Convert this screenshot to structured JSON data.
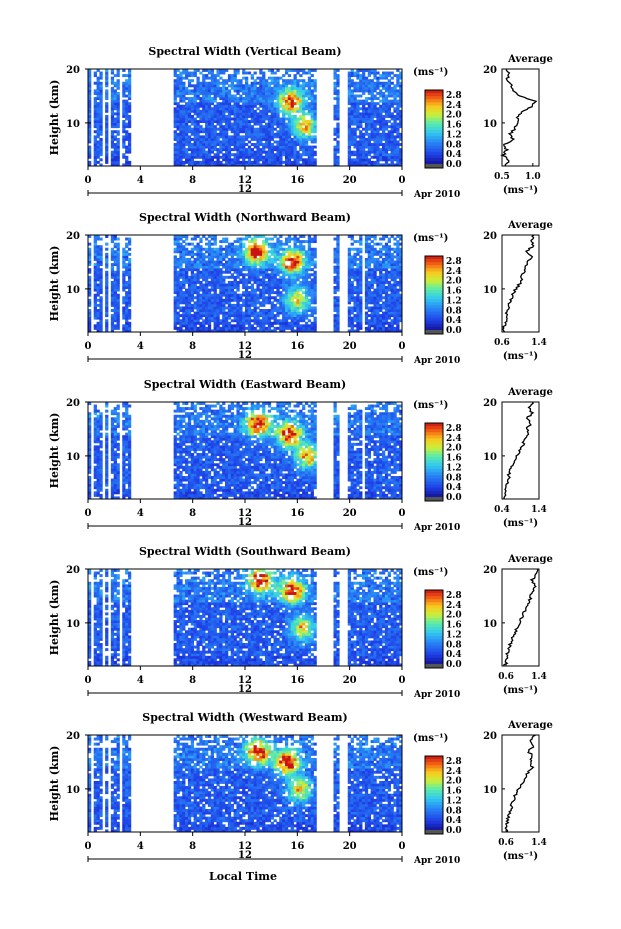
{
  "figure": {
    "xlabel": "Local Time",
    "date_label": "Apr 2010",
    "height_label": "Height (km)",
    "units_label": "(ms⁻¹)",
    "avg_title": "Average",
    "avg_xlabel": "(ms⁻¹)",
    "colorbar_ticks": [
      "2.8",
      "2.4",
      "2.0",
      "1.6",
      "1.2",
      "0.8",
      "0.4",
      "0.0"
    ],
    "colorbar_values": [
      2.8,
      2.4,
      2.0,
      1.6,
      1.2,
      0.8,
      0.4,
      0.0
    ],
    "x_ticks": [
      "0",
      "4",
      "8",
      "12",
      "16",
      "20",
      "0"
    ],
    "x_tick_values": [
      0,
      4,
      8,
      12,
      16,
      20,
      24
    ],
    "day_label": "12",
    "y_ticks": [
      "20",
      "10"
    ],
    "y_tick_values": [
      20,
      10
    ]
  },
  "chart_data": [
    {
      "type": "heatmap",
      "title": "Spectral Width (Vertical Beam)",
      "xlim": [
        0,
        24
      ],
      "ylim": [
        2,
        20
      ],
      "zlim": [
        0.0,
        3.0
      ],
      "data_gaps_hours": [
        [
          0.2,
          0.4
        ],
        [
          1.0,
          1.4
        ],
        [
          1.6,
          1.8
        ],
        [
          2.3,
          2.6
        ],
        [
          3.3,
          6.6
        ],
        [
          17.5,
          18.8
        ],
        [
          19.2,
          19.8
        ]
      ],
      "hotspots": [
        {
          "x": 15.5,
          "y": 14,
          "value": 2.4
        },
        {
          "x": 16.6,
          "y": 9.5,
          "value": 2.0
        }
      ],
      "average": {
        "xlim": [
          0.5,
          1.1
        ],
        "ticks": [
          "0.5",
          "1.0"
        ],
        "tick_values": [
          0.5,
          1.0
        ],
        "height": [
          2,
          3,
          4,
          5,
          6,
          7,
          8,
          9,
          10,
          11,
          12,
          13,
          14,
          15,
          16,
          17,
          18,
          19,
          20
        ],
        "value": [
          0.55,
          0.6,
          0.52,
          0.57,
          0.55,
          0.68,
          0.63,
          0.72,
          0.74,
          0.76,
          0.82,
          0.97,
          1.05,
          0.78,
          0.68,
          0.66,
          0.58,
          0.62,
          0.55
        ]
      }
    },
    {
      "type": "heatmap",
      "title": "Spectral Width (Northward Beam)",
      "xlim": [
        0,
        24
      ],
      "ylim": [
        2,
        20
      ],
      "zlim": [
        0.0,
        3.0
      ],
      "data_gaps_hours": [
        [
          0.2,
          0.4
        ],
        [
          1.0,
          1.4
        ],
        [
          1.6,
          1.8
        ],
        [
          2.3,
          2.6
        ],
        [
          3.3,
          6.6
        ],
        [
          17.5,
          18.8
        ],
        [
          19.2,
          19.8
        ],
        [
          21.0,
          21.2
        ]
      ],
      "hotspots": [
        {
          "x": 12.9,
          "y": 17,
          "value": 2.6
        },
        {
          "x": 15.6,
          "y": 15,
          "value": 2.6
        },
        {
          "x": 16.0,
          "y": 8,
          "value": 1.8
        }
      ],
      "average": {
        "xlim": [
          0.6,
          1.4
        ],
        "ticks": [
          "0.6",
          "1.4"
        ],
        "tick_values": [
          0.6,
          1.4
        ],
        "height": [
          2,
          3,
          4,
          5,
          6,
          7,
          8,
          9,
          10,
          11,
          12,
          13,
          14,
          15,
          16,
          17,
          18,
          19,
          20
        ],
        "value": [
          0.66,
          0.64,
          0.7,
          0.68,
          0.72,
          0.74,
          0.78,
          0.84,
          0.9,
          0.98,
          1.02,
          1.06,
          1.1,
          1.16,
          1.24,
          1.14,
          1.28,
          1.22,
          1.3
        ]
      }
    },
    {
      "type": "heatmap",
      "title": "Spectral Width (Eastward Beam)",
      "xlim": [
        0,
        24
      ],
      "ylim": [
        2,
        20
      ],
      "zlim": [
        0.0,
        3.0
      ],
      "data_gaps_hours": [
        [
          0.2,
          0.4
        ],
        [
          1.0,
          1.4
        ],
        [
          1.6,
          1.8
        ],
        [
          2.3,
          2.6
        ],
        [
          3.3,
          6.6
        ],
        [
          17.5,
          18.8
        ],
        [
          19.2,
          19.8
        ],
        [
          21.0,
          21.2
        ]
      ],
      "hotspots": [
        {
          "x": 13.0,
          "y": 16,
          "value": 2.6
        },
        {
          "x": 15.4,
          "y": 14,
          "value": 2.6
        },
        {
          "x": 16.8,
          "y": 10,
          "value": 2.0
        }
      ],
      "average": {
        "xlim": [
          0.4,
          1.4
        ],
        "ticks": [
          "0.4",
          "1.4"
        ],
        "tick_values": [
          0.4,
          1.4
        ],
        "height": [
          2,
          3,
          4,
          5,
          6,
          7,
          8,
          9,
          10,
          11,
          12,
          13,
          14,
          15,
          16,
          17,
          18,
          19,
          20
        ],
        "value": [
          0.48,
          0.5,
          0.52,
          0.56,
          0.58,
          0.6,
          0.64,
          0.72,
          0.8,
          0.88,
          0.96,
          1.02,
          1.12,
          1.06,
          1.18,
          1.1,
          1.2,
          1.14,
          1.22
        ]
      }
    },
    {
      "type": "heatmap",
      "title": "Spectral Width (Southward Beam)",
      "xlim": [
        0,
        24
      ],
      "ylim": [
        2,
        20
      ],
      "zlim": [
        0.0,
        3.0
      ],
      "data_gaps_hours": [
        [
          0.2,
          0.4
        ],
        [
          1.0,
          1.4
        ],
        [
          1.6,
          1.8
        ],
        [
          2.3,
          2.6
        ],
        [
          3.3,
          6.6
        ],
        [
          17.5,
          18.8
        ],
        [
          19.2,
          19.8
        ]
      ],
      "hotspots": [
        {
          "x": 13.2,
          "y": 18,
          "value": 2.6
        },
        {
          "x": 15.6,
          "y": 16,
          "value": 2.6
        },
        {
          "x": 16.4,
          "y": 9,
          "value": 1.8
        }
      ],
      "average": {
        "xlim": [
          0.5,
          1.4
        ],
        "ticks": [
          "0.6",
          "1.4"
        ],
        "tick_values": [
          0.6,
          1.4
        ],
        "height": [
          2,
          3,
          4,
          5,
          6,
          7,
          8,
          9,
          10,
          11,
          12,
          13,
          14,
          15,
          16,
          17,
          18,
          19,
          20
        ],
        "value": [
          0.58,
          0.6,
          0.62,
          0.64,
          0.7,
          0.74,
          0.8,
          0.86,
          0.92,
          0.98,
          1.04,
          1.1,
          1.16,
          1.2,
          1.26,
          1.3,
          1.24,
          1.32,
          1.36
        ]
      }
    },
    {
      "type": "heatmap",
      "title": "Spectral Width (Westward Beam)",
      "xlim": [
        0,
        24
      ],
      "ylim": [
        2,
        20
      ],
      "zlim": [
        0.0,
        3.0
      ],
      "data_gaps_hours": [
        [
          0.2,
          0.4
        ],
        [
          1.0,
          1.4
        ],
        [
          1.6,
          1.8
        ],
        [
          2.3,
          2.6
        ],
        [
          3.3,
          6.6
        ],
        [
          17.5,
          18.8
        ],
        [
          19.2,
          19.8
        ]
      ],
      "hotspots": [
        {
          "x": 13.0,
          "y": 17,
          "value": 2.6
        },
        {
          "x": 15.2,
          "y": 15,
          "value": 2.6
        },
        {
          "x": 16.2,
          "y": 10,
          "value": 1.8
        }
      ],
      "average": {
        "xlim": [
          0.5,
          1.4
        ],
        "ticks": [
          "0.6",
          "1.4"
        ],
        "tick_values": [
          0.6,
          1.4
        ],
        "height": [
          2,
          3,
          4,
          5,
          6,
          7,
          8,
          9,
          10,
          11,
          12,
          13,
          14,
          15,
          16,
          17,
          18,
          19,
          20
        ],
        "value": [
          0.6,
          0.62,
          0.64,
          0.66,
          0.7,
          0.74,
          0.78,
          0.84,
          0.9,
          0.98,
          1.06,
          1.14,
          1.24,
          1.18,
          1.26,
          1.12,
          1.28,
          1.2,
          1.3
        ]
      }
    }
  ]
}
